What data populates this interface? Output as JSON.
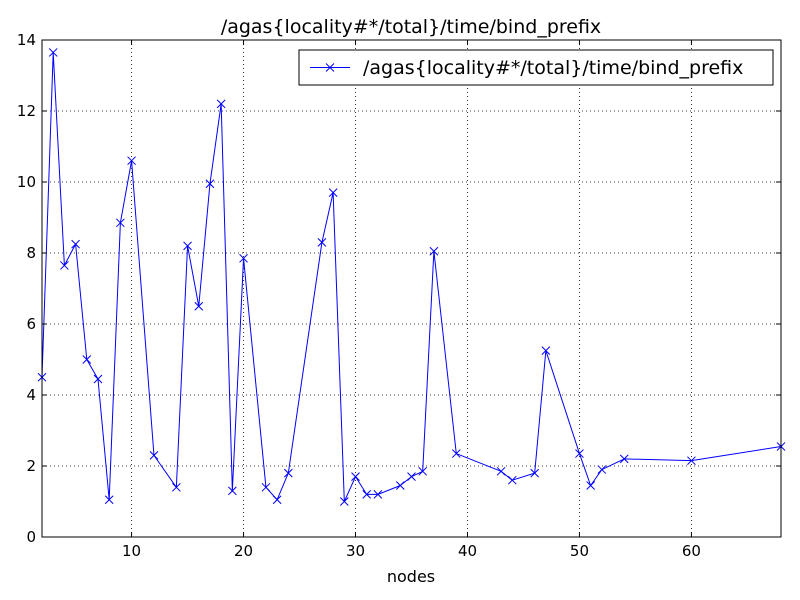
{
  "chart_data": {
    "type": "line",
    "title": "/agas{locality#*/total}/time/bind_prefix",
    "xlabel": "nodes",
    "ylabel": "",
    "xlim": [
      2,
      68
    ],
    "ylim": [
      0,
      14
    ],
    "xticks": [
      10,
      20,
      30,
      40,
      50,
      60
    ],
    "yticks": [
      0,
      2,
      4,
      6,
      8,
      10,
      12,
      14
    ],
    "grid": true,
    "legend": "top-right",
    "series": [
      {
        "name": "/agas{locality#*/total}/time/bind_prefix",
        "color": "#0000ff",
        "marker": "x",
        "x": [
          2,
          3,
          4,
          5,
          6,
          7,
          8,
          9,
          10,
          12,
          14,
          15,
          16,
          17,
          18,
          19,
          20,
          22,
          23,
          24,
          27,
          28,
          29,
          30,
          31,
          32,
          34,
          35,
          36,
          37,
          39,
          43,
          44,
          46,
          47,
          50,
          51,
          52,
          54,
          60,
          68
        ],
        "y": [
          4.5,
          13.65,
          7.65,
          8.25,
          5.0,
          4.45,
          1.05,
          8.85,
          10.6,
          2.3,
          1.4,
          8.2,
          6.5,
          9.95,
          12.2,
          1.3,
          7.85,
          1.4,
          1.05,
          1.8,
          8.3,
          9.7,
          1.0,
          1.7,
          1.2,
          1.2,
          1.45,
          1.7,
          1.85,
          8.05,
          2.35,
          1.85,
          1.6,
          1.8,
          5.25,
          2.35,
          1.45,
          1.9,
          2.2,
          2.15,
          2.55
        ]
      }
    ]
  }
}
